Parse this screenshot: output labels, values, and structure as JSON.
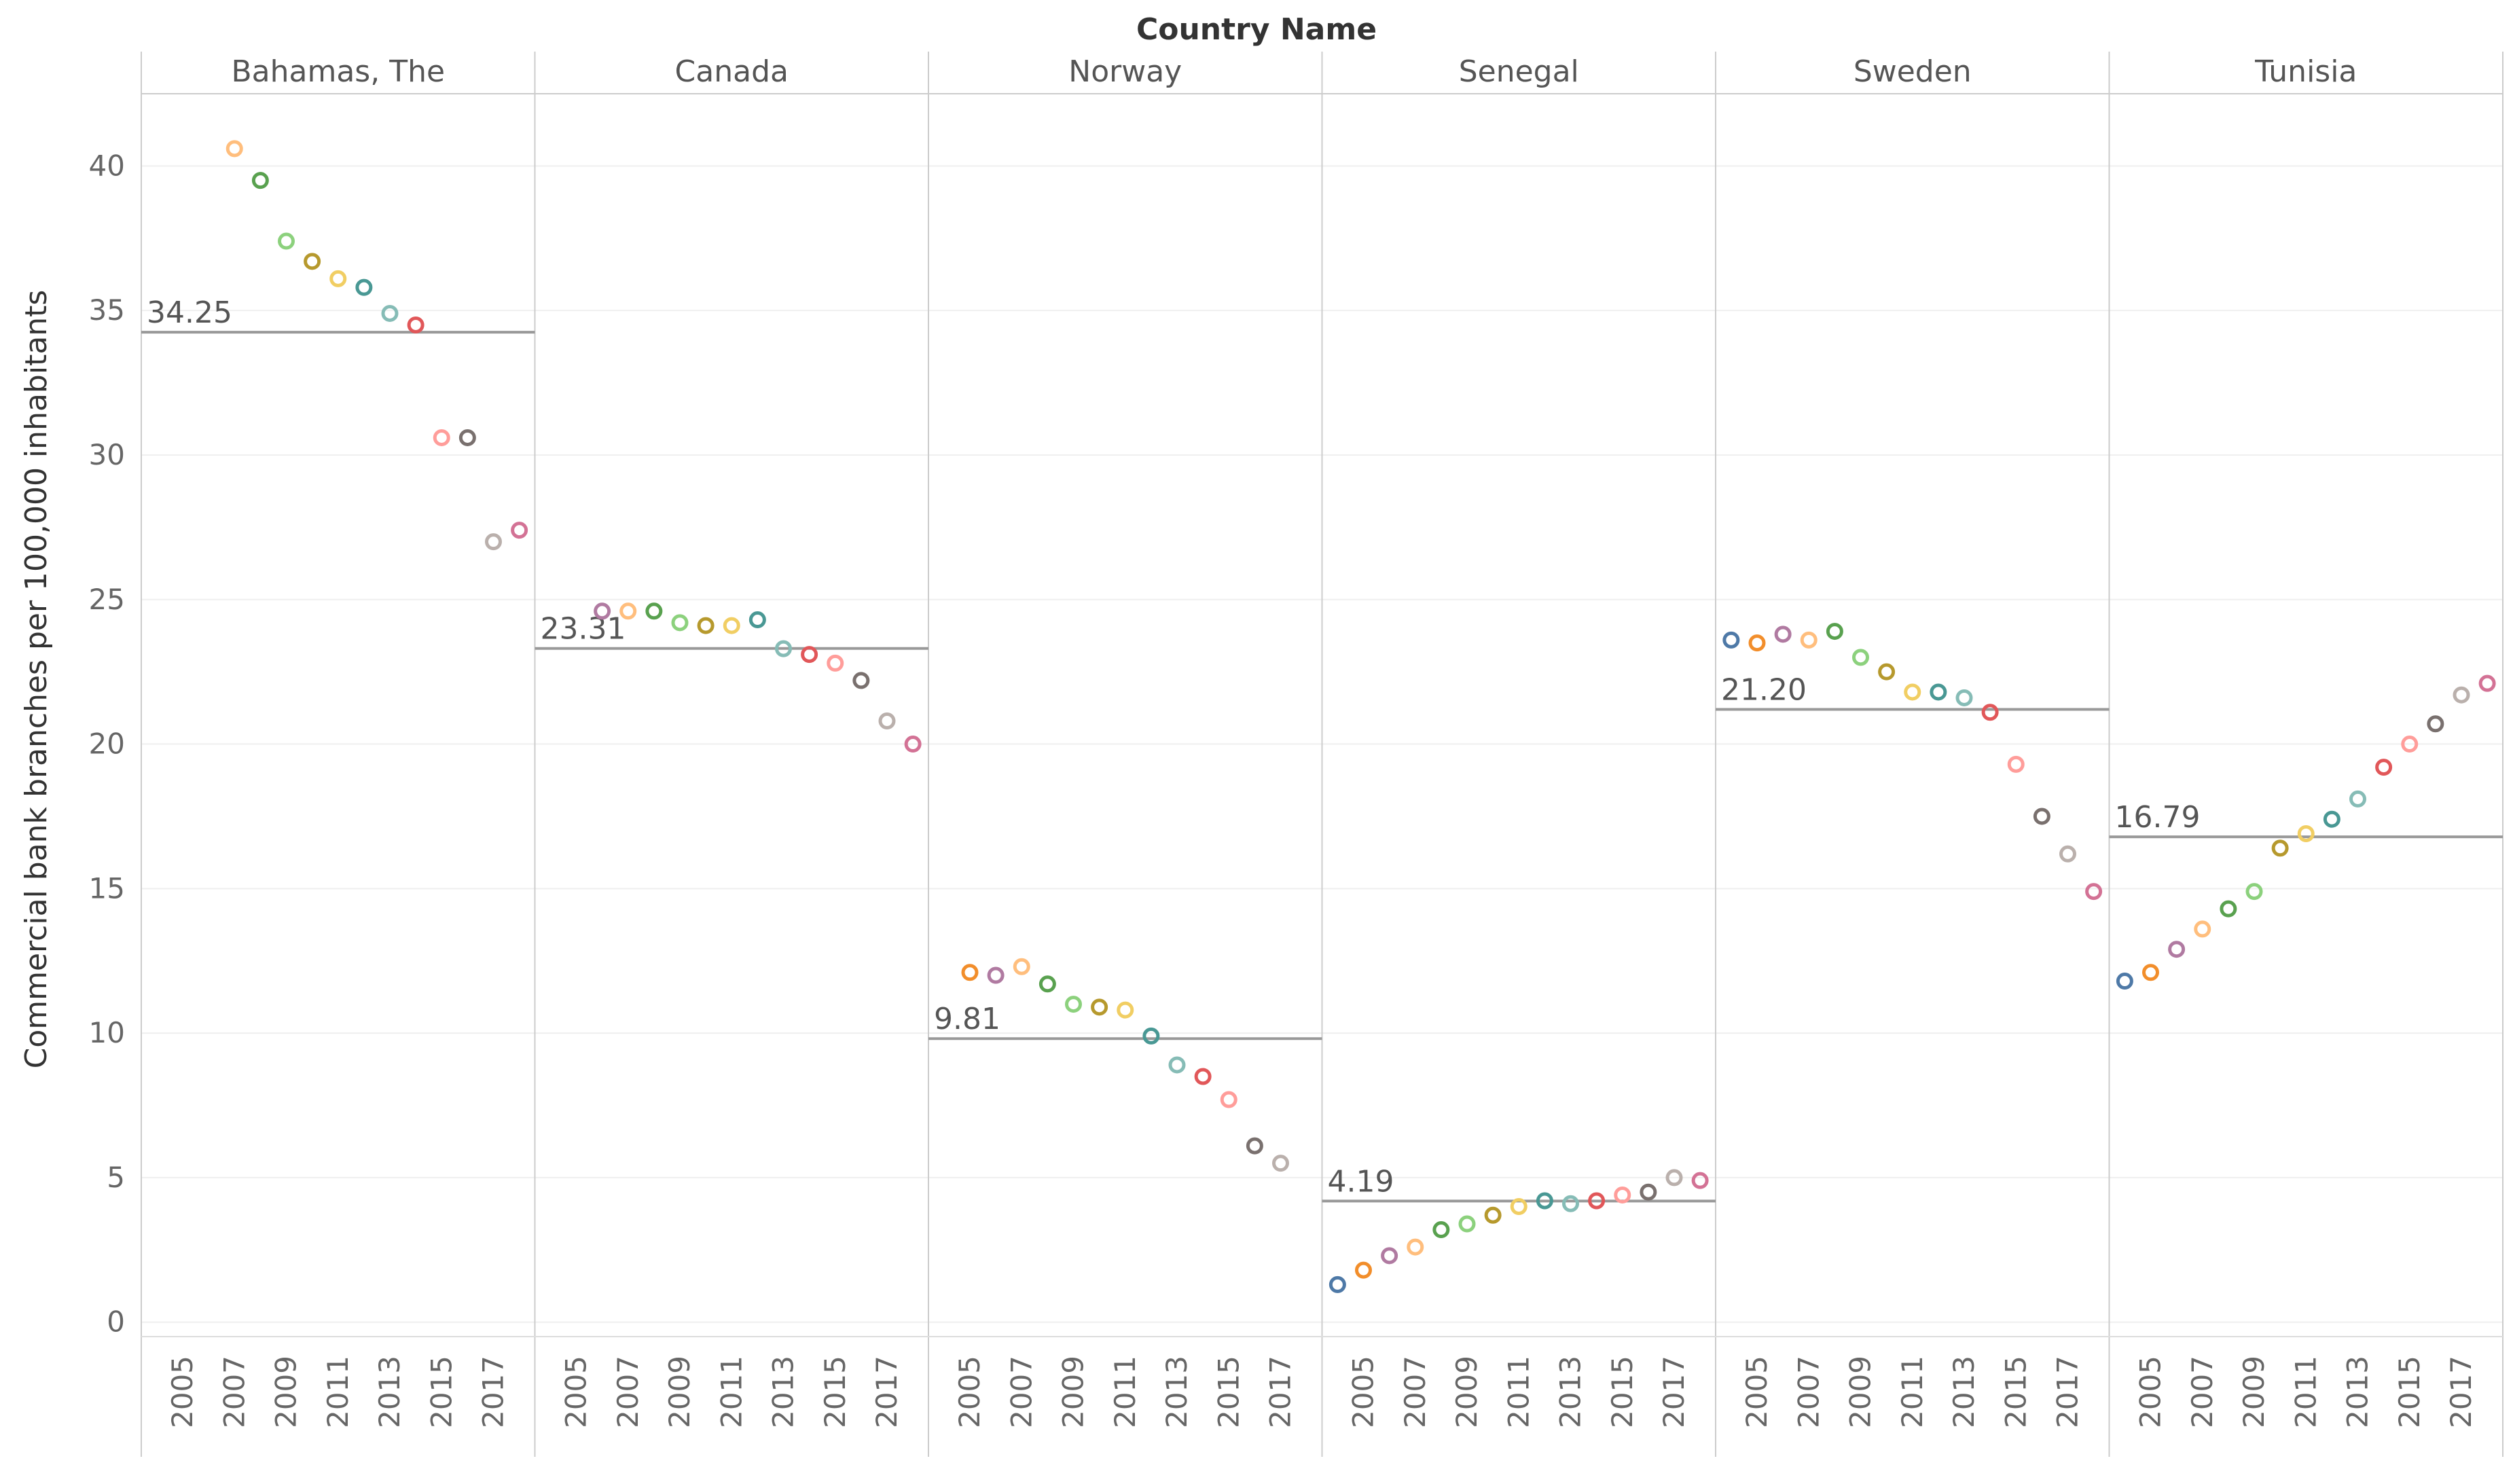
{
  "chart_data": {
    "type": "scatter",
    "title": "Country Name",
    "ylabel": "Commercial bank branches per 100,000 inhabitants",
    "xlabel": "",
    "ylim": [
      -0.5,
      42.5
    ],
    "yticks": [
      0,
      5,
      10,
      15,
      20,
      25,
      30,
      35,
      40
    ],
    "xlim": [
      2004,
      2019
    ],
    "xticks": [
      2005,
      2007,
      2009,
      2011,
      2013,
      2015,
      2017
    ],
    "grid": true,
    "year_colors": {
      "2004": "#4e79a7",
      "2005": "#f28e2b",
      "2006": "#b07aa1",
      "2007": "#ffbe7d",
      "2008": "#59a14f",
      "2009": "#8cd17d",
      "2010": "#b6992d",
      "2011": "#f1ce63",
      "2012": "#499894",
      "2013": "#86bcb6",
      "2014": "#e15759",
      "2015": "#ff9d9a",
      "2016": "#79706e",
      "2017": "#bab0ac",
      "2018": "#d37295"
    },
    "panels": [
      {
        "name": "Bahamas, The",
        "reference_line": 34.25,
        "reference_label": "34.25",
        "points": [
          {
            "x": 2007,
            "y": 40.6
          },
          {
            "x": 2008,
            "y": 39.5
          },
          {
            "x": 2009,
            "y": 37.4
          },
          {
            "x": 2010,
            "y": 36.7
          },
          {
            "x": 2011,
            "y": 36.1
          },
          {
            "x": 2012,
            "y": 35.8
          },
          {
            "x": 2013,
            "y": 34.9
          },
          {
            "x": 2014,
            "y": 34.5
          },
          {
            "x": 2015,
            "y": 30.6
          },
          {
            "x": 2016,
            "y": 30.6
          },
          {
            "x": 2017,
            "y": 27.0
          },
          {
            "x": 2018,
            "y": 27.4
          }
        ]
      },
      {
        "name": "Canada",
        "reference_line": 23.31,
        "reference_label": "23.31",
        "points": [
          {
            "x": 2006,
            "y": 24.6
          },
          {
            "x": 2007,
            "y": 24.6
          },
          {
            "x": 2008,
            "y": 24.6
          },
          {
            "x": 2009,
            "y": 24.2
          },
          {
            "x": 2010,
            "y": 24.1
          },
          {
            "x": 2011,
            "y": 24.1
          },
          {
            "x": 2012,
            "y": 24.3
          },
          {
            "x": 2013,
            "y": 23.3
          },
          {
            "x": 2014,
            "y": 23.1
          },
          {
            "x": 2015,
            "y": 22.8
          },
          {
            "x": 2016,
            "y": 22.2
          },
          {
            "x": 2017,
            "y": 20.8
          },
          {
            "x": 2018,
            "y": 20.0
          }
        ]
      },
      {
        "name": "Norway",
        "reference_line": 9.81,
        "reference_label": "9.81",
        "points": [
          {
            "x": 2005,
            "y": 12.1
          },
          {
            "x": 2006,
            "y": 12.0
          },
          {
            "x": 2007,
            "y": 12.3
          },
          {
            "x": 2008,
            "y": 11.7
          },
          {
            "x": 2009,
            "y": 11.0
          },
          {
            "x": 2010,
            "y": 10.9
          },
          {
            "x": 2011,
            "y": 10.8
          },
          {
            "x": 2012,
            "y": 9.9
          },
          {
            "x": 2013,
            "y": 8.9
          },
          {
            "x": 2014,
            "y": 8.5
          },
          {
            "x": 2015,
            "y": 7.7
          },
          {
            "x": 2016,
            "y": 6.1
          },
          {
            "x": 2017,
            "y": 5.5
          }
        ]
      },
      {
        "name": "Senegal",
        "reference_line": 4.19,
        "reference_label": "4.19",
        "points": [
          {
            "x": 2004,
            "y": 1.3
          },
          {
            "x": 2005,
            "y": 1.8
          },
          {
            "x": 2006,
            "y": 2.3
          },
          {
            "x": 2007,
            "y": 2.6
          },
          {
            "x": 2008,
            "y": 3.2
          },
          {
            "x": 2009,
            "y": 3.4
          },
          {
            "x": 2010,
            "y": 3.7
          },
          {
            "x": 2011,
            "y": 4.0
          },
          {
            "x": 2012,
            "y": 4.2
          },
          {
            "x": 2013,
            "y": 4.1
          },
          {
            "x": 2014,
            "y": 4.2
          },
          {
            "x": 2015,
            "y": 4.4
          },
          {
            "x": 2016,
            "y": 4.5
          },
          {
            "x": 2017,
            "y": 5.0
          },
          {
            "x": 2018,
            "y": 4.9
          }
        ]
      },
      {
        "name": "Sweden",
        "reference_line": 21.2,
        "reference_label": "21.20",
        "points": [
          {
            "x": 2004,
            "y": 23.6
          },
          {
            "x": 2005,
            "y": 23.5
          },
          {
            "x": 2006,
            "y": 23.8
          },
          {
            "x": 2007,
            "y": 23.6
          },
          {
            "x": 2008,
            "y": 23.9
          },
          {
            "x": 2009,
            "y": 23.0
          },
          {
            "x": 2010,
            "y": 22.5
          },
          {
            "x": 2011,
            "y": 21.8
          },
          {
            "x": 2012,
            "y": 21.8
          },
          {
            "x": 2013,
            "y": 21.6
          },
          {
            "x": 2014,
            "y": 21.1
          },
          {
            "x": 2015,
            "y": 19.3
          },
          {
            "x": 2016,
            "y": 17.5
          },
          {
            "x": 2017,
            "y": 16.2
          },
          {
            "x": 2018,
            "y": 14.9
          }
        ]
      },
      {
        "name": "Tunisia",
        "reference_line": 16.79,
        "reference_label": "16.79",
        "points": [
          {
            "x": 2004,
            "y": 11.8
          },
          {
            "x": 2005,
            "y": 12.1
          },
          {
            "x": 2006,
            "y": 12.9
          },
          {
            "x": 2007,
            "y": 13.6
          },
          {
            "x": 2008,
            "y": 14.3
          },
          {
            "x": 2009,
            "y": 14.9
          },
          {
            "x": 2010,
            "y": 16.4
          },
          {
            "x": 2011,
            "y": 16.9
          },
          {
            "x": 2012,
            "y": 17.4
          },
          {
            "x": 2013,
            "y": 18.1
          },
          {
            "x": 2014,
            "y": 19.2
          },
          {
            "x": 2015,
            "y": 20.0
          },
          {
            "x": 2016,
            "y": 20.7
          },
          {
            "x": 2017,
            "y": 21.7
          },
          {
            "x": 2018,
            "y": 22.1
          }
        ]
      }
    ]
  }
}
